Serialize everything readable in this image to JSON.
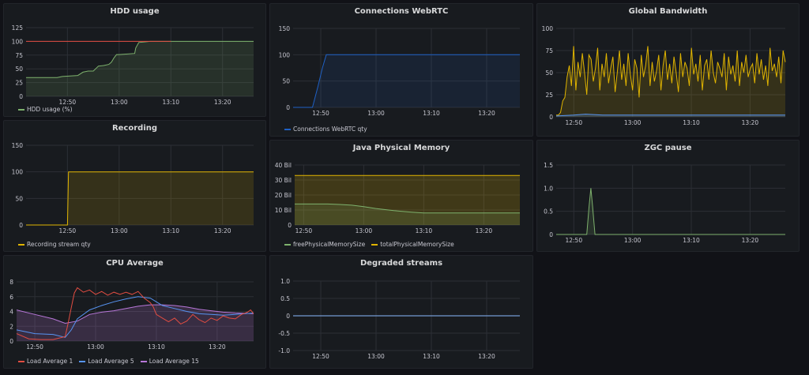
{
  "panels": {
    "hdd": {
      "title": "HDD usage",
      "legend": [
        {
          "label": "HDD usage (%)",
          "color": "#7eb26d"
        }
      ],
      "chart_data": {
        "type": "line",
        "ylim": [
          0,
          125
        ],
        "yticks": [
          "0",
          "25",
          "50",
          "75",
          "100",
          "125"
        ],
        "yvals": [
          0,
          25,
          50,
          75,
          100,
          125
        ],
        "xlim": [
          -8,
          36
        ],
        "xticks": [
          {
            "v": 0,
            "t": "12:50"
          },
          {
            "v": 10,
            "t": "13:00"
          },
          {
            "v": 20,
            "t": "13:10"
          },
          {
            "v": 30,
            "t": "13:20"
          }
        ],
        "series": [
          {
            "name": "HDD usage (%)",
            "color": "#7eb26d",
            "fill": "#7eb26d",
            "fillOpacity": 0.15,
            "x": [
              -8,
              -2,
              -1,
              2,
              3,
              4,
              5,
              6,
              7,
              8,
              8.5,
              9,
              9.5,
              10,
              13,
              13.2,
              13.8,
              16,
              20,
              36
            ],
            "y": [
              34,
              34,
              36,
              38,
              44,
              46,
              46,
              55,
              56,
              58,
              62,
              70,
              76,
              76,
              78,
              88,
              98,
              100,
              100,
              100
            ]
          },
          {
            "name": "",
            "color": "#e24d42",
            "fill": null,
            "x": [
              -8,
              20
            ],
            "y": [
              100,
              100
            ]
          }
        ]
      }
    },
    "webrtc": {
      "title": "Connections WebRTC",
      "legend": [
        {
          "label": "Connections WebRTC qty",
          "color": "#1f60c4"
        }
      ],
      "chart_data": {
        "type": "line",
        "ylim": [
          0,
          150
        ],
        "yticks": [
          "0",
          "50",
          "100",
          "150"
        ],
        "yvals": [
          0,
          50,
          100,
          150
        ],
        "xlim": [
          -5,
          36
        ],
        "xticks": [
          {
            "v": 0,
            "t": "12:50"
          },
          {
            "v": 10,
            "t": "13:00"
          },
          {
            "v": 20,
            "t": "13:10"
          },
          {
            "v": 30,
            "t": "13:20"
          }
        ],
        "series": [
          {
            "name": "Connections WebRTC qty",
            "color": "#1f60c4",
            "fill": "#1f60c4",
            "fillOpacity": 0.12,
            "x": [
              -5,
              -1.5,
              -0.5,
              0.3,
              1,
              36
            ],
            "y": [
              0,
              0,
              40,
              75,
              100,
              100
            ]
          }
        ]
      }
    },
    "bandwidth": {
      "title": "Global Bandwidth",
      "legend": [],
      "chart_data": {
        "type": "line",
        "ylim": [
          0,
          100
        ],
        "yticks": [
          "0",
          "25",
          "50",
          "75",
          "100"
        ],
        "yvals": [
          0,
          25,
          50,
          75,
          100
        ],
        "xlim": [
          -3,
          36
        ],
        "xticks": [
          {
            "v": 0,
            "t": "12:50"
          },
          {
            "v": 10,
            "t": "13:00"
          },
          {
            "v": 20,
            "t": "13:10"
          },
          {
            "v": 30,
            "t": "13:20"
          }
        ],
        "series": [
          {
            "name": "",
            "color": "#e0b400",
            "fill": "#e0b400",
            "fillOpacity": 0.15,
            "x": [],
            "y": []
          },
          {
            "name": "",
            "color": "#5794f2",
            "fill": "#5794f2",
            "fillOpacity": 0.2,
            "x": [
              -3,
              0,
              2,
              5,
              10,
              15,
              20,
              25,
              30,
              36
            ],
            "y": [
              1,
              2,
              3,
              2,
              2,
              2,
              2,
              2,
              2,
              2
            ]
          }
        ],
        "bandwidth_y": [
          2,
          2,
          5,
          18,
          22,
          45,
          58,
          35,
          80,
          30,
          62,
          45,
          72,
          50,
          25,
          70,
          65,
          40,
          55,
          78,
          30,
          60,
          45,
          72,
          38,
          55,
          68,
          28,
          50,
          75,
          42,
          60,
          35,
          72,
          48,
          30,
          65,
          55,
          22,
          70,
          45,
          58,
          80,
          35,
          62,
          40,
          52,
          70,
          30,
          58,
          75,
          42,
          60,
          38,
          68,
          50,
          28,
          72,
          45,
          62,
          55,
          35,
          78,
          48,
          60,
          40,
          70,
          30,
          58,
          65,
          42,
          75,
          50,
          38,
          62,
          55,
          45,
          72,
          30,
          68,
          48,
          58,
          40,
          75,
          35,
          62,
          50,
          70,
          45,
          55,
          60,
          38,
          72,
          48,
          65,
          42,
          58,
          35,
          78,
          52,
          60,
          45,
          68,
          38,
          75,
          62
        ]
      }
    },
    "recording": {
      "title": "Recording",
      "legend": [
        {
          "label": "Recording stream qty",
          "color": "#e0b400"
        }
      ],
      "chart_data": {
        "type": "line",
        "ylim": [
          0,
          150
        ],
        "yticks": [
          "0",
          "50",
          "100",
          "150"
        ],
        "yvals": [
          0,
          50,
          100,
          150
        ],
        "xlim": [
          -8,
          36
        ],
        "xticks": [
          {
            "v": 0,
            "t": "12:50"
          },
          {
            "v": 10,
            "t": "13:00"
          },
          {
            "v": 20,
            "t": "13:10"
          },
          {
            "v": 30,
            "t": "13:20"
          }
        ],
        "series": [
          {
            "name": "Recording stream qty",
            "color": "#e0b400",
            "fill": "#e0b400",
            "fillOpacity": 0.15,
            "x": [
              -8,
              0,
              0.2,
              36
            ],
            "y": [
              0,
              0,
              100,
              100
            ]
          }
        ]
      }
    },
    "javamem": {
      "title": "Java Physical Memory",
      "legend": [
        {
          "label": "freePhysicalMemorySize",
          "color": "#7eb26d"
        },
        {
          "label": "totalPhysicalMemorySize",
          "color": "#e0b400"
        }
      ],
      "chart_data": {
        "type": "area",
        "ylim": [
          0,
          40
        ],
        "yticks": [
          "0",
          "10 Bil",
          "20 Bil",
          "30 Bil",
          "40 Bil"
        ],
        "yvals": [
          0,
          10,
          20,
          30,
          40
        ],
        "xlim": [
          -1.5,
          36
        ],
        "xticks": [
          {
            "v": 0,
            "t": "12:50"
          },
          {
            "v": 10,
            "t": "13:00"
          },
          {
            "v": 20,
            "t": "13:10"
          },
          {
            "v": 30,
            "t": "13:20"
          }
        ],
        "series": [
          {
            "name": "totalPhysicalMemorySize",
            "color": "#e0b400",
            "fill": "#e0b400",
            "fillOpacity": 0.2,
            "x": [
              -1.5,
              36
            ],
            "y": [
              33,
              33
            ]
          },
          {
            "name": "freePhysicalMemorySize",
            "color": "#7eb26d",
            "fill": "#7eb26d",
            "fillOpacity": 0.15,
            "x": [
              -1.5,
              4,
              6,
              8,
              10,
              12,
              15,
              18,
              20,
              36
            ],
            "y": [
              14,
              14,
              13.7,
              13.2,
              12.2,
              11,
              9.6,
              8.5,
              8,
              8
            ]
          }
        ]
      }
    },
    "zgc": {
      "title": "ZGC pause",
      "legend": [],
      "chart_data": {
        "type": "line",
        "ylim": [
          0,
          1.5
        ],
        "yticks": [
          "0",
          "0.5",
          "1.0",
          "1.5"
        ],
        "yvals": [
          0,
          0.5,
          1.0,
          1.5
        ],
        "xlim": [
          -3,
          36
        ],
        "xticks": [
          {
            "v": 0,
            "t": "12:50"
          },
          {
            "v": 10,
            "t": "13:00"
          },
          {
            "v": 20,
            "t": "13:10"
          },
          {
            "v": 30,
            "t": "13:20"
          }
        ],
        "series": [
          {
            "name": "",
            "color": "#7eb26d",
            "fill": "#7eb26d",
            "fillOpacity": 0.15,
            "x": [
              -3,
              2.2,
              2.6,
              2.9,
              3.2,
              3.6,
              36
            ],
            "y": [
              0,
              0,
              0.6,
              1,
              0.6,
              0,
              0
            ]
          }
        ]
      }
    },
    "cpu": {
      "title": "CPU Average",
      "legend": [
        {
          "label": "Load  Average 1",
          "color": "#e24d42"
        },
        {
          "label": "Load  Average 5",
          "color": "#5794f2"
        },
        {
          "label": "Load  Average 15",
          "color": "#b877d9"
        }
      ],
      "chart_data": {
        "type": "line",
        "ylim": [
          0,
          8
        ],
        "yticks": [
          "0",
          "2",
          "4",
          "6",
          "8"
        ],
        "yvals": [
          0,
          2,
          4,
          6,
          8
        ],
        "xlim": [
          -3,
          36
        ],
        "xticks": [
          {
            "v": 0,
            "t": "12:50"
          },
          {
            "v": 10,
            "t": "13:00"
          },
          {
            "v": 20,
            "t": "13:10"
          },
          {
            "v": 30,
            "t": "13:20"
          }
        ],
        "series": [
          {
            "name": "Load  Average 15",
            "color": "#b877d9",
            "fill": "#b877d9",
            "fillOpacity": 0.2,
            "x": [
              -3,
              0,
              3,
              5,
              7,
              9,
              11,
              13,
              15,
              17,
              19,
              21,
              23,
              25,
              27,
              29,
              31,
              33,
              36
            ],
            "y": [
              4.2,
              3.6,
              3,
              2.4,
              2.7,
              3.6,
              3.9,
              4.1,
              4.4,
              4.7,
              4.9,
              4.9,
              4.8,
              4.6,
              4.3,
              4.1,
              3.9,
              3.8,
              3.7
            ]
          },
          {
            "name": "Load  Average 5",
            "color": "#5794f2",
            "fill": null,
            "x": [
              -3,
              0,
              3,
              5,
              6,
              7,
              9,
              11,
              13,
              15,
              17,
              19,
              21,
              23,
              25,
              27,
              29,
              31,
              33,
              36
            ],
            "y": [
              1.5,
              1,
              0.9,
              0.5,
              1.5,
              3,
              4.2,
              4.8,
              5.3,
              5.7,
              6,
              5.8,
              4.8,
              4.4,
              4,
              3.7,
              3.6,
              3.5,
              3.6,
              3.8
            ]
          },
          {
            "name": "Load  Average 1",
            "color": "#e24d42",
            "fill": null,
            "x": [
              -3,
              -1,
              1,
              3,
              5,
              5.5,
              6,
              6.5,
              7,
              8,
              9,
              10,
              11,
              12,
              13,
              14,
              15,
              16,
              17,
              18,
              19,
              19.5,
              20,
              21,
              22,
              23,
              24,
              25,
              26,
              27,
              28,
              29,
              30,
              31,
              32,
              33,
              34,
              35,
              35.5,
              36
            ],
            "y": [
              1,
              0.3,
              0.2,
              0.2,
              0.6,
              2.5,
              4.5,
              6.5,
              7.2,
              6.6,
              6.9,
              6.3,
              6.7,
              6.2,
              6.6,
              6.3,
              6.6,
              6.3,
              6.7,
              5.8,
              5.2,
              4.6,
              3.6,
              3.1,
              2.6,
              3.1,
              2.3,
              2.7,
              3.6,
              2.9,
              2.5,
              3.1,
              2.8,
              3.4,
              3.1,
              3.0,
              3.6,
              3.9,
              4.2,
              3.7
            ]
          }
        ]
      }
    },
    "degraded": {
      "title": "Degraded streams",
      "legend": [],
      "chart_data": {
        "type": "line",
        "ylim": [
          -1,
          1
        ],
        "yticks": [
          "-1.0",
          "-0.5",
          "0",
          "0.5",
          "1.0"
        ],
        "yvals": [
          -1,
          -0.5,
          0,
          0.5,
          1
        ],
        "xlim": [
          -5,
          36
        ],
        "xticks": [
          {
            "v": 0,
            "t": "12:50"
          },
          {
            "v": 10,
            "t": "13:00"
          },
          {
            "v": 20,
            "t": "13:10"
          },
          {
            "v": 30,
            "t": "13:20"
          }
        ],
        "series": [
          {
            "name": "",
            "color": "#8ab8ff",
            "fill": null,
            "x": [
              -5,
              36
            ],
            "y": [
              0,
              0
            ]
          }
        ]
      }
    }
  }
}
